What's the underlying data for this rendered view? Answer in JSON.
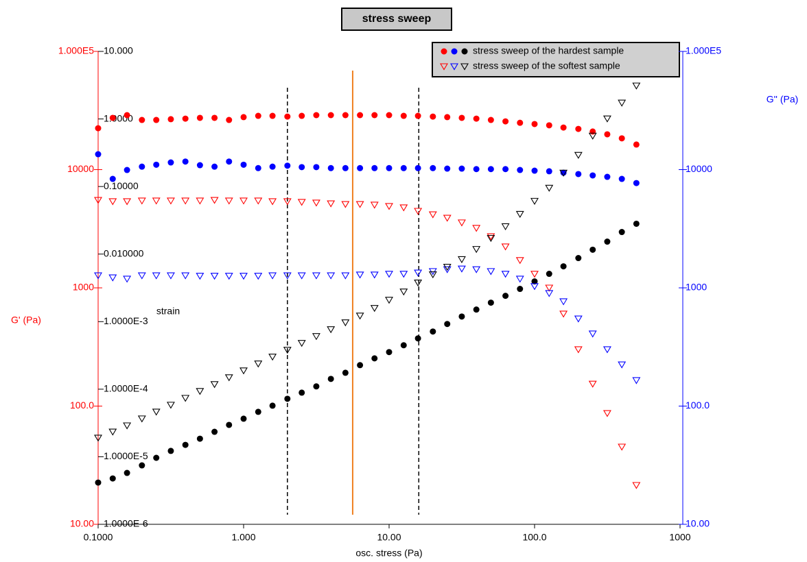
{
  "chart_data": {
    "type": "scatter",
    "title": "stress sweep",
    "x_label": "osc. stress (Pa)",
    "y_label": "G' (Pa)",
    "y2_label": "G'' (Pa)",
    "y3_label": "strain",
    "log_x": true,
    "log_y": true,
    "xlim": [
      0.1,
      1000
    ],
    "xticks": [
      {
        "value": 0.1,
        "label": "0.1000"
      },
      {
        "value": 1,
        "label": "1.000"
      },
      {
        "value": 10,
        "label": "10.00"
      },
      {
        "value": 100,
        "label": "100.0"
      },
      1000
    ],
    "ylim": [
      10,
      100000
    ],
    "yticks": [
      {
        "value": 10,
        "label": "10.00"
      },
      {
        "value": 100,
        "label": "100.0"
      },
      1000,
      10000,
      {
        "value": 100000,
        "label": "1.000E5"
      }
    ],
    "y2lim": [
      10,
      100000
    ],
    "y2ticks": [
      {
        "value": 10,
        "label": "10.00"
      },
      {
        "value": 100,
        "label": "100.0"
      },
      1000,
      10000,
      {
        "value": 100000,
        "label": "1.000E5"
      }
    ],
    "y3lim": [
      1e-06,
      10
    ],
    "y3ticks": [
      {
        "value": 1e-06,
        "label": "1.0000E-6"
      },
      {
        "value": 1e-05,
        "label": "1.0000E-5"
      },
      {
        "value": 0.0001,
        "label": "1.0000E-4"
      },
      {
        "value": 0.001,
        "label": "1.0000E-3"
      },
      {
        "value": 0.01,
        "label": "0.010000"
      },
      {
        "value": 0.1,
        "label": "0.10000"
      },
      {
        "value": 1,
        "label": "1.0000"
      },
      {
        "value": 10,
        "label": "10.000"
      }
    ],
    "y_color": "#ff0000",
    "y2_color": "#0000ff",
    "y3_color": "#000000",
    "legend": "top-right",
    "x": [
      0.1,
      0.126,
      0.158,
      0.2,
      0.251,
      0.316,
      0.398,
      0.501,
      0.631,
      0.794,
      1,
      1.26,
      1.58,
      2,
      2.51,
      3.16,
      3.98,
      5.01,
      6.31,
      7.94,
      10,
      12.6,
      15.8,
      20,
      25.1,
      31.6,
      39.8,
      50.1,
      63.1,
      79.4,
      100,
      126,
      158,
      200,
      251,
      316,
      398,
      501
    ],
    "reference_lines": [
      {
        "x": 2,
        "color": "#000000",
        "dashed": true
      },
      {
        "x": 5.62,
        "color": "#f08020",
        "dashed": false
      },
      {
        "x": 16,
        "color": "#000000",
        "dashed": true
      }
    ],
    "samples": [
      {
        "name": "stress sweep of the hardest sample",
        "marker": "circle",
        "series": [
          {
            "axis": "y",
            "color": "#ff0000",
            "values": [
              22400,
              27400,
              28900,
              26300,
              26300,
              26700,
              27000,
              27400,
              27400,
              26300,
              27800,
              28500,
              28500,
              28100,
              28500,
              28900,
              28900,
              28900,
              28900,
              28900,
              28900,
              28500,
              28500,
              28100,
              27800,
              27400,
              27000,
              26300,
              25600,
              24900,
              24300,
              23700,
              22700,
              22100,
              21000,
              19900,
              18400,
              16300
            ]
          },
          {
            "axis": "y2",
            "color": "#0000ff",
            "values": [
              13500,
              8350,
              9930,
              10600,
              11000,
              11500,
              11700,
              10900,
              10600,
              11700,
              11000,
              10300,
              10600,
              10800,
              10500,
              10500,
              10300,
              10300,
              10300,
              10300,
              10300,
              10300,
              10300,
              10300,
              10200,
              10200,
              10100,
              10100,
              10100,
              9930,
              9800,
              9680,
              9420,
              9170,
              8930,
              8690,
              8350,
              7700
            ]
          },
          {
            "axis": "y3",
            "color": "#000000",
            "values": [
              4.15e-06,
              4.77e-06,
              5.76e-06,
              7.45e-06,
              9.64e-06,
              1.22e-05,
              1.5e-05,
              1.85e-05,
              2.34e-05,
              2.96e-05,
              3.66e-05,
              4.62e-05,
              5.7e-05,
              7.21e-05,
              8.89e-05,
              0.00011,
              0.000142,
              0.000175,
              0.000227,
              0.000286,
              0.000354,
              0.000447,
              0.000565,
              0.000714,
              0.000923,
              0.00119,
              0.00151,
              0.00191,
              0.00241,
              0.00305,
              0.00394,
              0.0051,
              0.00659,
              0.00873,
              0.0116,
              0.0153,
              0.0212,
              0.0281
            ]
          }
        ]
      },
      {
        "name": "stress sweep of the softest sample",
        "marker": "triangle-down",
        "series": [
          {
            "axis": "y",
            "color": "#ff0000",
            "values": [
              5520,
              5380,
              5380,
              5450,
              5450,
              5450,
              5450,
              5450,
              5520,
              5450,
              5450,
              5450,
              5380,
              5380,
              5310,
              5240,
              5160,
              5090,
              5090,
              5030,
              4900,
              4770,
              4460,
              4170,
              3900,
              3560,
              3200,
              2720,
              2230,
              1710,
              1310,
              1000,
              603,
              301,
              154,
              86.9,
              45.2,
              21.4
            ]
          },
          {
            "axis": "y2",
            "color": "#0000ff",
            "values": [
              1270,
              1220,
              1190,
              1270,
              1270,
              1270,
              1270,
              1260,
              1260,
              1260,
              1260,
              1260,
              1270,
              1270,
              1270,
              1270,
              1270,
              1270,
              1290,
              1290,
              1310,
              1310,
              1340,
              1380,
              1430,
              1450,
              1430,
              1380,
              1310,
              1190,
              1030,
              899,
              766,
              548,
              409,
              301,
              224,
              165
            ]
          },
          {
            "axis": "y3",
            "color": "#000000",
            "values": [
              1.9e-05,
              2.34e-05,
              2.89e-05,
              3.66e-05,
              4.62e-05,
              5.84e-05,
              7.38e-05,
              9.33e-05,
              0.000118,
              0.000149,
              0.000188,
              0.000238,
              0.000301,
              0.00038,
              0.00048,
              0.000606,
              0.000766,
              0.000968,
              0.00122,
              0.00158,
              0.00209,
              0.00277,
              0.00376,
              0.00498,
              0.00644,
              0.00834,
              0.0118,
              0.0172,
              0.0256,
              0.039,
              0.0609,
              0.095,
              0.159,
              0.292,
              0.562,
              1.01,
              1.73,
              3.1
            ]
          }
        ]
      }
    ]
  }
}
